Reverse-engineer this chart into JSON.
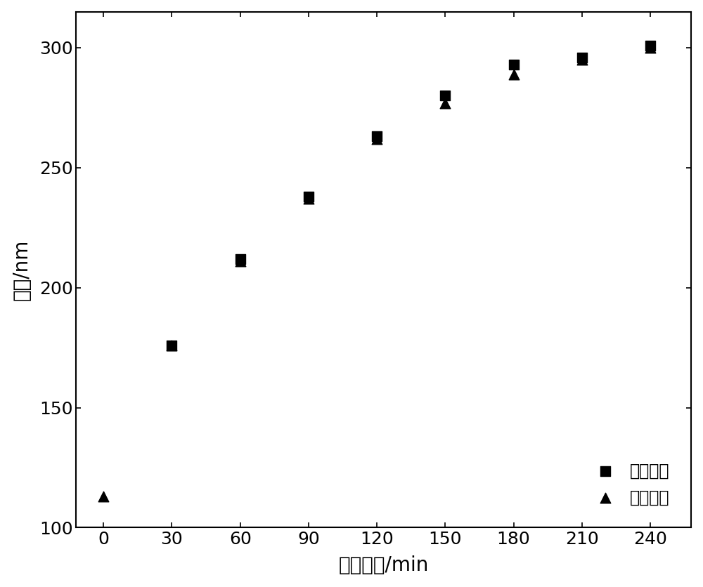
{
  "sq_x": [
    30,
    60,
    90,
    120,
    150,
    180,
    210,
    240
  ],
  "sq_y": [
    176,
    212,
    238,
    263,
    280,
    293,
    296,
    301
  ],
  "tri_x": [
    0,
    30,
    60,
    90,
    120,
    150,
    180,
    210,
    240
  ],
  "tri_y": [
    113,
    176,
    211,
    237,
    262,
    277,
    289,
    295,
    300
  ],
  "xlabel": "反应时间/min",
  "ylabel": "粒径/nm",
  "legend_theoretical": "理论粒径",
  "legend_measured": "实测粒径",
  "xlim": [
    -12,
    258
  ],
  "ylim": [
    100,
    315
  ],
  "xticks": [
    0,
    30,
    60,
    90,
    120,
    150,
    180,
    210,
    240
  ],
  "yticks": [
    100,
    150,
    200,
    250,
    300
  ],
  "marker_color": "#000000",
  "background_color": "#ffffff",
  "axis_fontsize": 20,
  "tick_fontsize": 18,
  "legend_fontsize": 17,
  "marker_size": 110
}
